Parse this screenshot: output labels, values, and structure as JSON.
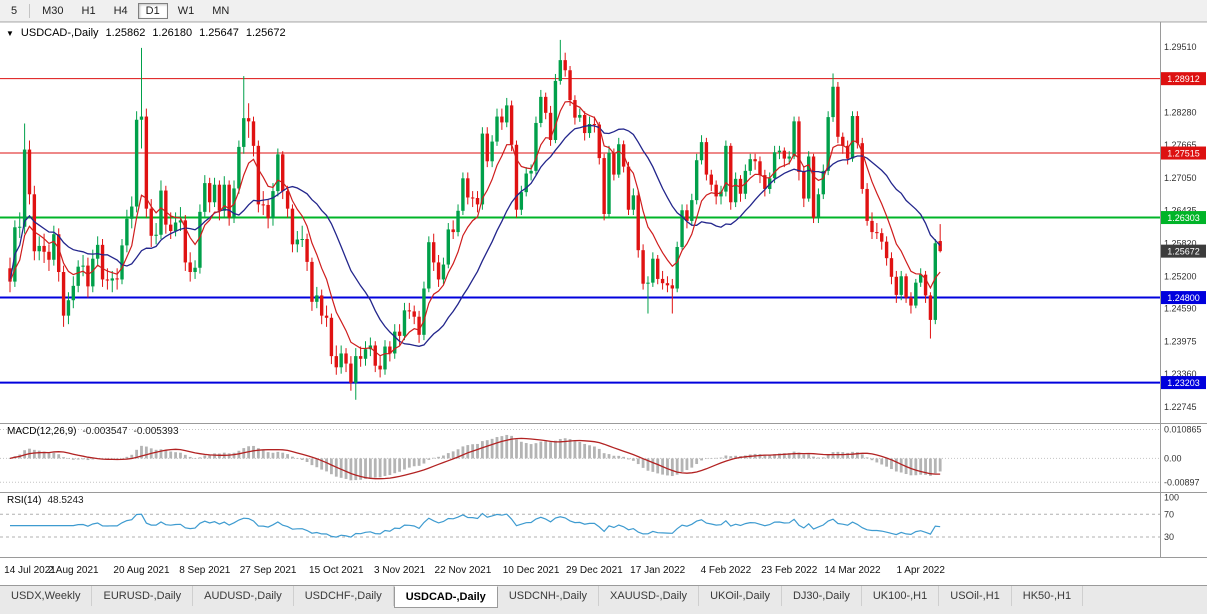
{
  "toolbar": {
    "items": [
      "5",
      "M30",
      "H1",
      "H4",
      "D1",
      "W1",
      "MN"
    ],
    "active": "D1"
  },
  "chart": {
    "collapse_icon": "▼",
    "symbol": "USDCAD-,Daily",
    "open": "1.25862",
    "high": "1.26180",
    "low": "1.25647",
    "close": "1.25672"
  },
  "price_axis": {
    "ticks": [
      {
        "label": "1.29510",
        "value": 1.2951
      },
      {
        "label": "1.28280",
        "value": 1.2828
      },
      {
        "label": "1.27665",
        "value": 1.27665
      },
      {
        "label": "1.27050",
        "value": 1.2705
      },
      {
        "label": "1.26435",
        "value": 1.26435
      },
      {
        "label": "1.25820",
        "value": 1.2582
      },
      {
        "label": "1.25200",
        "value": 1.252
      },
      {
        "label": "1.24590",
        "value": 1.2459
      },
      {
        "label": "1.23975",
        "value": 1.23975
      },
      {
        "label": "1.23360",
        "value": 1.2336
      },
      {
        "label": "1.22745",
        "value": 1.22745
      }
    ]
  },
  "hlines": [
    {
      "price": 1.28912,
      "label": "1.28912",
      "color": "#dd1111",
      "thickness": 1
    },
    {
      "price": 1.27515,
      "label": "1.27515",
      "color": "#dd1111",
      "thickness": 1
    },
    {
      "price": 1.26303,
      "label": "1.26303",
      "color": "#00b428",
      "thickness": 2
    },
    {
      "price": 1.248,
      "label": "1.24800",
      "color": "#0000dd",
      "thickness": 2
    },
    {
      "price": 1.23203,
      "label": "1.23203",
      "color": "#0000dd",
      "thickness": 2
    }
  ],
  "current_price": {
    "value": 1.25672,
    "label": "1.25672",
    "badge_color": "#3c3c3c"
  },
  "indicators": {
    "macd": {
      "label": "MACD(12,26,9)",
      "value_main": "-0.003547",
      "value_signal": "-0.005393",
      "axis": [
        {
          "label": "0.010865",
          "value": 0.010865
        },
        {
          "label": "0.00",
          "value": 0
        },
        {
          "label": "-0.00897",
          "value": -0.00897
        }
      ]
    },
    "rsi": {
      "label": "RSI(14)",
      "value": "48.5243",
      "axis": [
        {
          "label": "100",
          "value": 100
        },
        {
          "label": "70",
          "value": 70
        },
        {
          "label": "30",
          "value": 30
        }
      ],
      "levels": [
        70,
        30
      ]
    }
  },
  "x_axis": {
    "labels": [
      {
        "text": "14 Jul 2021",
        "index": 0
      },
      {
        "text": "2 Aug 2021",
        "index": 13
      },
      {
        "text": "20 Aug 2021",
        "index": 27
      },
      {
        "text": "8 Sep 2021",
        "index": 40
      },
      {
        "text": "27 Sep 2021",
        "index": 53
      },
      {
        "text": "15 Oct 2021",
        "index": 67
      },
      {
        "text": "3 Nov 2021",
        "index": 80
      },
      {
        "text": "22 Nov 2021",
        "index": 93
      },
      {
        "text": "10 Dec 2021",
        "index": 107
      },
      {
        "text": "29 Dec 2021",
        "index": 120
      },
      {
        "text": "17 Jan 2022",
        "index": 133
      },
      {
        "text": "4 Feb 2022",
        "index": 147
      },
      {
        "text": "23 Feb 2022",
        "index": 160
      },
      {
        "text": "14 Mar 2022",
        "index": 173
      },
      {
        "text": "1 Apr 2022",
        "index": 187
      }
    ]
  },
  "colors": {
    "up": "#00a04a",
    "down": "#e01212",
    "ma_fast": "#cf1d1d",
    "ma_slow": "#23268c",
    "macd_hist": "#b4b4b4",
    "macd_signal": "#b22222",
    "rsi_line": "#3e9bd0"
  },
  "chart_data": {
    "type": "candlestick",
    "symbol": "USDCAD",
    "timeframe": "Daily",
    "title": "USDCAD-,Daily",
    "ylim": [
      1.225,
      1.2992
    ],
    "overlays": [
      {
        "name": "ma-fast",
        "type": "ema",
        "period": 8,
        "color": "#cf1d1d"
      },
      {
        "name": "ma-slow",
        "type": "sma",
        "period": 20,
        "color": "#23268c"
      }
    ],
    "macd_params": {
      "fast": 12,
      "slow": 26,
      "signal": 9,
      "ylim": [
        -0.0115,
        0.0122
      ]
    },
    "rsi_params": {
      "period": 14,
      "ylim": [
        0,
        104
      ]
    },
    "candles": [
      [
        1.2535,
        1.2555,
        1.249,
        1.251
      ],
      [
        1.251,
        1.2625,
        1.25,
        1.2612
      ],
      [
        1.2612,
        1.264,
        1.2592,
        1.2613
      ],
      [
        1.2613,
        1.2807,
        1.26,
        1.2758
      ],
      [
        1.2758,
        1.2775,
        1.2655,
        1.2674
      ],
      [
        1.2674,
        1.269,
        1.255,
        1.2567
      ],
      [
        1.2567,
        1.2595,
        1.255,
        1.2577
      ],
      [
        1.2577,
        1.26,
        1.2545,
        1.2566
      ],
      [
        1.2566,
        1.258,
        1.253,
        1.2551
      ],
      [
        1.2551,
        1.2615,
        1.254,
        1.2599
      ],
      [
        1.2599,
        1.261,
        1.251,
        1.2528
      ],
      [
        1.2528,
        1.254,
        1.2425,
        1.2446
      ],
      [
        1.2446,
        1.249,
        1.243,
        1.2475
      ],
      [
        1.2475,
        1.252,
        1.246,
        1.2502
      ],
      [
        1.2502,
        1.255,
        1.249,
        1.2538
      ],
      [
        1.2538,
        1.256,
        1.252,
        1.254
      ],
      [
        1.254,
        1.2555,
        1.248,
        1.2501
      ],
      [
        1.2501,
        1.257,
        1.249,
        1.2553
      ],
      [
        1.2553,
        1.2595,
        1.254,
        1.2579
      ],
      [
        1.2579,
        1.259,
        1.25,
        1.2514
      ],
      [
        1.2514,
        1.2535,
        1.2495,
        1.2512
      ],
      [
        1.2512,
        1.253,
        1.249,
        1.2516
      ],
      [
        1.2516,
        1.2535,
        1.2495,
        1.2514
      ],
      [
        1.2514,
        1.259,
        1.2505,
        1.2578
      ],
      [
        1.2578,
        1.2645,
        1.2565,
        1.2628
      ],
      [
        1.2628,
        1.267,
        1.261,
        1.2651
      ],
      [
        1.2651,
        1.283,
        1.264,
        1.2814
      ],
      [
        1.2814,
        1.2949,
        1.276,
        1.282
      ],
      [
        1.282,
        1.2835,
        1.263,
        1.2647
      ],
      [
        1.2647,
        1.2665,
        1.2575,
        1.2596
      ],
      [
        1.2596,
        1.262,
        1.258,
        1.2598
      ],
      [
        1.2598,
        1.27,
        1.259,
        1.2681
      ],
      [
        1.2681,
        1.269,
        1.26,
        1.2617
      ],
      [
        1.2617,
        1.264,
        1.259,
        1.2605
      ],
      [
        1.2605,
        1.264,
        1.2595,
        1.2621
      ],
      [
        1.2621,
        1.265,
        1.2605,
        1.2625
      ],
      [
        1.2625,
        1.2635,
        1.253,
        1.2546
      ],
      [
        1.2546,
        1.2565,
        1.251,
        1.2528
      ],
      [
        1.2528,
        1.255,
        1.2515,
        1.2536
      ],
      [
        1.2536,
        1.2655,
        1.2525,
        1.2641
      ],
      [
        1.2641,
        1.271,
        1.263,
        1.2695
      ],
      [
        1.2695,
        1.2705,
        1.264,
        1.2659
      ],
      [
        1.2659,
        1.2705,
        1.265,
        1.2692
      ],
      [
        1.2692,
        1.27,
        1.2625,
        1.2643
      ],
      [
        1.2643,
        1.2708,
        1.263,
        1.2692
      ],
      [
        1.2692,
        1.27,
        1.2615,
        1.263
      ],
      [
        1.263,
        1.27,
        1.262,
        1.2685
      ],
      [
        1.2685,
        1.2775,
        1.2675,
        1.2763
      ],
      [
        1.2763,
        1.2896,
        1.275,
        1.2817
      ],
      [
        1.2817,
        1.2845,
        1.278,
        1.2811
      ],
      [
        1.2811,
        1.282,
        1.2745,
        1.2765
      ],
      [
        1.2765,
        1.2775,
        1.264,
        1.2655
      ],
      [
        1.2655,
        1.268,
        1.2635,
        1.2654
      ],
      [
        1.2654,
        1.2665,
        1.261,
        1.2629
      ],
      [
        1.2629,
        1.2695,
        1.2615,
        1.268
      ],
      [
        1.268,
        1.276,
        1.267,
        1.2749
      ],
      [
        1.2749,
        1.2755,
        1.2665,
        1.268
      ],
      [
        1.268,
        1.269,
        1.263,
        1.2647
      ],
      [
        1.2647,
        1.2655,
        1.2565,
        1.258
      ],
      [
        1.258,
        1.2605,
        1.2565,
        1.2589
      ],
      [
        1.2589,
        1.2615,
        1.2575,
        1.259
      ],
      [
        1.259,
        1.26,
        1.253,
        1.2547
      ],
      [
        1.2547,
        1.2555,
        1.2455,
        1.2472
      ],
      [
        1.2472,
        1.25,
        1.246,
        1.2484
      ],
      [
        1.2484,
        1.2495,
        1.243,
        1.2446
      ],
      [
        1.2446,
        1.2465,
        1.2425,
        1.2442
      ],
      [
        1.2442,
        1.245,
        1.2355,
        1.237
      ],
      [
        1.237,
        1.239,
        1.2335,
        1.2349
      ],
      [
        1.2349,
        1.239,
        1.2337,
        1.2375
      ],
      [
        1.2375,
        1.2385,
        1.234,
        1.2356
      ],
      [
        1.2356,
        1.237,
        1.2305,
        1.232
      ],
      [
        1.232,
        1.2385,
        1.2288,
        1.237
      ],
      [
        1.237,
        1.2388,
        1.235,
        1.2365
      ],
      [
        1.2365,
        1.2398,
        1.2352,
        1.2383
      ],
      [
        1.2383,
        1.2405,
        1.237,
        1.239
      ],
      [
        1.239,
        1.2398,
        1.234,
        1.2352
      ],
      [
        1.2352,
        1.237,
        1.233,
        1.2345
      ],
      [
        1.2345,
        1.24,
        1.2335,
        1.2388
      ],
      [
        1.2388,
        1.2398,
        1.236,
        1.2375
      ],
      [
        1.2375,
        1.243,
        1.2365,
        1.2416
      ],
      [
        1.2416,
        1.243,
        1.239,
        1.2408
      ],
      [
        1.2408,
        1.247,
        1.24,
        1.2456
      ],
      [
        1.2456,
        1.247,
        1.244,
        1.2454
      ],
      [
        1.2454,
        1.2465,
        1.243,
        1.2444
      ],
      [
        1.2444,
        1.2455,
        1.2395,
        1.241
      ],
      [
        1.241,
        1.251,
        1.24,
        1.2497
      ],
      [
        1.2497,
        1.2595,
        1.249,
        1.2584
      ],
      [
        1.2584,
        1.26,
        1.253,
        1.2546
      ],
      [
        1.2546,
        1.256,
        1.25,
        1.2514
      ],
      [
        1.2514,
        1.2555,
        1.2505,
        1.2542
      ],
      [
        1.2542,
        1.262,
        1.2535,
        1.2608
      ],
      [
        1.2608,
        1.2625,
        1.259,
        1.2603
      ],
      [
        1.2603,
        1.2655,
        1.2595,
        1.2643
      ],
      [
        1.2643,
        1.2715,
        1.2635,
        1.2704
      ],
      [
        1.2704,
        1.2715,
        1.2655,
        1.2668
      ],
      [
        1.2668,
        1.268,
        1.265,
        1.2667
      ],
      [
        1.2667,
        1.268,
        1.264,
        1.2655
      ],
      [
        1.2655,
        1.28,
        1.2645,
        1.2788
      ],
      [
        1.2788,
        1.28,
        1.2725,
        1.2736
      ],
      [
        1.2736,
        1.2785,
        1.2725,
        1.2773
      ],
      [
        1.2773,
        1.2835,
        1.2765,
        1.282
      ],
      [
        1.282,
        1.2835,
        1.2795,
        1.2809
      ],
      [
        1.2809,
        1.2855,
        1.28,
        1.2841
      ],
      [
        1.2841,
        1.285,
        1.2755,
        1.2767
      ],
      [
        1.2767,
        1.2775,
        1.263,
        1.2645
      ],
      [
        1.2645,
        1.269,
        1.2635,
        1.2678
      ],
      [
        1.2678,
        1.2725,
        1.267,
        1.2713
      ],
      [
        1.2713,
        1.273,
        1.27,
        1.2718
      ],
      [
        1.2718,
        1.282,
        1.271,
        1.2808
      ],
      [
        1.2808,
        1.287,
        1.28,
        1.2857
      ],
      [
        1.2857,
        1.2865,
        1.2815,
        1.2827
      ],
      [
        1.2827,
        1.284,
        1.2765,
        1.2776
      ],
      [
        1.2776,
        1.29,
        1.277,
        1.2887
      ],
      [
        1.2887,
        1.2964,
        1.288,
        1.2926
      ],
      [
        1.2926,
        1.294,
        1.2895,
        1.2907
      ],
      [
        1.2907,
        1.2915,
        1.284,
        1.2851
      ],
      [
        1.2851,
        1.286,
        1.2805,
        1.2818
      ],
      [
        1.2818,
        1.2835,
        1.281,
        1.2823
      ],
      [
        1.2823,
        1.283,
        1.2775,
        1.2789
      ],
      [
        1.2789,
        1.282,
        1.278,
        1.2806
      ],
      [
        1.2806,
        1.282,
        1.279,
        1.2805
      ],
      [
        1.2805,
        1.281,
        1.273,
        1.2742
      ],
      [
        1.2742,
        1.275,
        1.2625,
        1.2637
      ],
      [
        1.2637,
        1.2765,
        1.263,
        1.2752
      ],
      [
        1.2752,
        1.276,
        1.27,
        1.2711
      ],
      [
        1.2711,
        1.278,
        1.2705,
        1.2768
      ],
      [
        1.2768,
        1.2775,
        1.2715,
        1.2726
      ],
      [
        1.2726,
        1.2735,
        1.2635,
        1.2645
      ],
      [
        1.2645,
        1.2685,
        1.2635,
        1.2672
      ],
      [
        1.2672,
        1.268,
        1.2555,
        1.2569
      ],
      [
        1.2569,
        1.258,
        1.2495,
        1.2506
      ],
      [
        1.2506,
        1.252,
        1.245,
        1.2508
      ],
      [
        1.2508,
        1.2565,
        1.25,
        1.2553
      ],
      [
        1.2553,
        1.256,
        1.2505,
        1.2515
      ],
      [
        1.2515,
        1.253,
        1.2495,
        1.2507
      ],
      [
        1.2507,
        1.252,
        1.249,
        1.2503
      ],
      [
        1.2503,
        1.2515,
        1.245,
        1.2497
      ],
      [
        1.2497,
        1.2585,
        1.249,
        1.2575
      ],
      [
        1.2575,
        1.2655,
        1.257,
        1.2644
      ],
      [
        1.2644,
        1.2655,
        1.261,
        1.2624
      ],
      [
        1.2624,
        1.2675,
        1.2615,
        1.2663
      ],
      [
        1.2663,
        1.275,
        1.2655,
        1.2738
      ],
      [
        1.2738,
        1.2785,
        1.273,
        1.2772
      ],
      [
        1.2772,
        1.278,
        1.27,
        1.2711
      ],
      [
        1.2711,
        1.272,
        1.268,
        1.2692
      ],
      [
        1.2692,
        1.27,
        1.2655,
        1.267
      ],
      [
        1.267,
        1.269,
        1.2655,
        1.2679
      ],
      [
        1.2679,
        1.2775,
        1.267,
        1.2765
      ],
      [
        1.2765,
        1.277,
        1.2645,
        1.2659
      ],
      [
        1.2659,
        1.2715,
        1.265,
        1.2703
      ],
      [
        1.2703,
        1.271,
        1.266,
        1.2675
      ],
      [
        1.2675,
        1.273,
        1.2665,
        1.2718
      ],
      [
        1.2718,
        1.275,
        1.271,
        1.274
      ],
      [
        1.274,
        1.275,
        1.272,
        1.2736
      ],
      [
        1.2736,
        1.2745,
        1.2695,
        1.271
      ],
      [
        1.271,
        1.272,
        1.267,
        1.2684
      ],
      [
        1.2684,
        1.2715,
        1.2675,
        1.2704
      ],
      [
        1.2704,
        1.2765,
        1.2695,
        1.2753
      ],
      [
        1.2753,
        1.2765,
        1.274,
        1.2756
      ],
      [
        1.2756,
        1.2762,
        1.2725,
        1.2741
      ],
      [
        1.2741,
        1.2755,
        1.273,
        1.2745
      ],
      [
        1.2745,
        1.282,
        1.274,
        1.2811
      ],
      [
        1.2811,
        1.282,
        1.27,
        1.2716
      ],
      [
        1.2716,
        1.2725,
        1.265,
        1.2666
      ],
      [
        1.2666,
        1.2755,
        1.266,
        1.2745
      ],
      [
        1.2745,
        1.275,
        1.262,
        1.263
      ],
      [
        1.263,
        1.2685,
        1.262,
        1.2674
      ],
      [
        1.2674,
        1.273,
        1.2665,
        1.2718
      ],
      [
        1.2718,
        1.283,
        1.271,
        1.2819
      ],
      [
        1.2819,
        1.2901,
        1.281,
        1.2876
      ],
      [
        1.2876,
        1.2885,
        1.277,
        1.2782
      ],
      [
        1.2782,
        1.279,
        1.275,
        1.2765
      ],
      [
        1.2765,
        1.2775,
        1.273,
        1.2741
      ],
      [
        1.2741,
        1.283,
        1.2735,
        1.2821
      ],
      [
        1.2821,
        1.283,
        1.276,
        1.277
      ],
      [
        1.277,
        1.278,
        1.2675,
        1.2684
      ],
      [
        1.2684,
        1.2695,
        1.2615,
        1.2624
      ],
      [
        1.2624,
        1.264,
        1.259,
        1.2603
      ],
      [
        1.2603,
        1.262,
        1.259,
        1.2601
      ],
      [
        1.2601,
        1.261,
        1.257,
        1.2585
      ],
      [
        1.2585,
        1.2595,
        1.254,
        1.2554
      ],
      [
        1.2554,
        1.2565,
        1.2505,
        1.2519
      ],
      [
        1.2519,
        1.253,
        1.247,
        1.2485
      ],
      [
        1.2485,
        1.253,
        1.2475,
        1.252
      ],
      [
        1.252,
        1.2525,
        1.247,
        1.248
      ],
      [
        1.248,
        1.249,
        1.245,
        1.2465
      ],
      [
        1.2465,
        1.2515,
        1.246,
        1.2508
      ],
      [
        1.2508,
        1.2535,
        1.25,
        1.2523
      ],
      [
        1.2523,
        1.253,
        1.247,
        1.2484
      ],
      [
        1.2484,
        1.249,
        1.2403,
        1.2438
      ],
      [
        1.2438,
        1.259,
        1.243,
        1.2582
      ],
      [
        1.25862,
        1.2618,
        1.25647,
        1.25672
      ]
    ]
  },
  "tabs": {
    "items": [
      "USDX,Weekly",
      "EURUSD-,Daily",
      "AUDUSD-,Daily",
      "USDCHF-,Daily",
      "USDCAD-,Daily",
      "USDCNH-,Daily",
      "XAUUSD-,Daily",
      "UKOil-,Daily",
      "DJ30-,Daily",
      "UK100-,H1",
      "USOil-,H1",
      "HK50-,H1"
    ],
    "active": "USDCAD-,Daily"
  }
}
